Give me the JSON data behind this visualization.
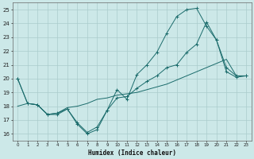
{
  "xlabel": "Humidex (Indice chaleur)",
  "background_color": "#cce8e8",
  "grid_color": "#aacccc",
  "line_color": "#1a6b6b",
  "xlim": [
    -0.5,
    23.5
  ],
  "ylim": [
    15.5,
    25.5
  ],
  "yticks": [
    16,
    17,
    18,
    19,
    20,
    21,
    22,
    23,
    24,
    25
  ],
  "xticks": [
    0,
    1,
    2,
    3,
    4,
    5,
    6,
    7,
    8,
    9,
    10,
    11,
    12,
    13,
    14,
    15,
    16,
    17,
    18,
    19,
    20,
    21,
    22,
    23
  ],
  "line1_x": [
    0,
    1,
    2,
    3,
    4,
    5,
    6,
    7,
    8,
    9,
    10,
    11,
    12,
    13,
    14,
    15,
    16,
    17,
    18,
    19,
    20,
    21,
    22,
    23
  ],
  "line1_y": [
    20.0,
    18.2,
    18.1,
    17.4,
    17.4,
    17.8,
    16.7,
    16.0,
    16.3,
    17.7,
    19.2,
    18.5,
    20.3,
    21.0,
    21.9,
    23.3,
    24.5,
    25.0,
    25.1,
    23.8,
    22.8,
    20.8,
    20.2,
    20.2
  ],
  "line2_x": [
    0,
    1,
    2,
    3,
    4,
    5,
    6,
    7,
    8,
    9,
    10,
    11,
    12,
    13,
    14,
    15,
    16,
    17,
    18,
    19,
    20,
    21,
    22,
    23
  ],
  "line2_y": [
    20.0,
    18.2,
    18.1,
    17.4,
    17.5,
    17.8,
    16.8,
    16.1,
    16.5,
    17.7,
    18.6,
    18.7,
    19.3,
    19.8,
    20.2,
    20.8,
    21.0,
    21.9,
    22.5,
    24.1,
    22.8,
    20.5,
    20.1,
    20.2
  ],
  "line3_x": [
    0,
    1,
    2,
    3,
    4,
    5,
    6,
    7,
    8,
    9,
    10,
    11,
    12,
    13,
    14,
    15,
    16,
    17,
    18,
    19,
    20,
    21,
    22,
    23
  ],
  "line3_y": [
    18.0,
    18.2,
    18.1,
    17.4,
    17.5,
    17.9,
    18.0,
    18.2,
    18.5,
    18.6,
    18.8,
    18.9,
    19.0,
    19.2,
    19.4,
    19.6,
    19.9,
    20.2,
    20.5,
    20.8,
    21.1,
    21.4,
    20.2,
    20.2
  ]
}
